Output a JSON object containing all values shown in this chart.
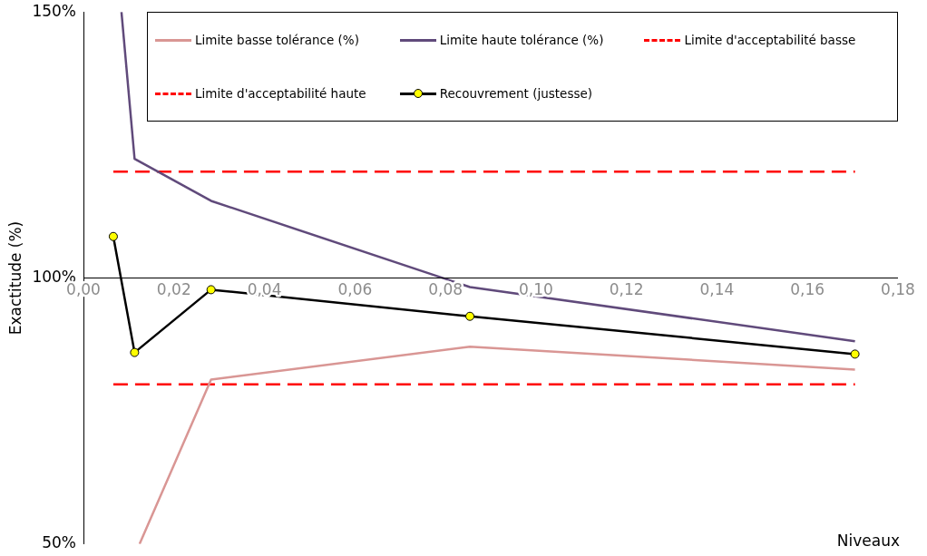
{
  "chart_data": {
    "type": "line",
    "xlabel": "Niveaux",
    "ylabel": "Exactitude (%)",
    "xlim": [
      0,
      0.18
    ],
    "ylim": [
      50,
      150
    ],
    "xticks": [
      {
        "value": 0,
        "label": "0,00"
      },
      {
        "value": 0.02,
        "label": "0,02"
      },
      {
        "value": 0.04,
        "label": "0,04"
      },
      {
        "value": 0.06,
        "label": "0,06"
      },
      {
        "value": 0.08,
        "label": "0,08"
      },
      {
        "value": 0.1,
        "label": "0,10"
      },
      {
        "value": 0.12,
        "label": "0,12"
      },
      {
        "value": 0.14,
        "label": "0,14"
      },
      {
        "value": 0.16,
        "label": "0,16"
      },
      {
        "value": 0.18,
        "label": "0,18"
      }
    ],
    "yticks": [
      {
        "value": 50,
        "label": "50%"
      },
      {
        "value": 100,
        "label": "100%"
      },
      {
        "value": 150,
        "label": "150%"
      }
    ],
    "ref_lines": [
      {
        "axis": "y",
        "value": 100,
        "color": "#000000"
      }
    ],
    "grid": false,
    "legend": "top right",
    "marker": "none",
    "line_style": "solid",
    "series": [
      {
        "name": "Limite basse tolérance (%)",
        "color": "#d99694",
        "x": [
          0.0124,
          0.0282,
          0.0854,
          0.1705
        ],
        "values": [
          50,
          80.9,
          87.1,
          82.8
        ]
      },
      {
        "name": "Limite haute tolérance (%)",
        "color": "#604a7b",
        "x": [
          0.0084,
          0.0113,
          0.0282,
          0.0854,
          0.1705
        ],
        "values": [
          150,
          122.4,
          114.5,
          98.3,
          88.1
        ]
      },
      {
        "name": "Limite d'acceptabilité basse",
        "color": "#ff0000",
        "line_style": "dashed",
        "x": [
          0.0066,
          0.1705
        ],
        "values": [
          80,
          80
        ]
      },
      {
        "name": "Limite d'acceptabilité haute",
        "color": "#ff0000",
        "line_style": "dashed",
        "x": [
          0.0066,
          0.1705
        ],
        "values": [
          120,
          120
        ]
      },
      {
        "name": "Recouvrement (justesse)",
        "color": "#000000",
        "marker": "circle",
        "colors": [
          "#ffff00",
          "#ffff00",
          "#ffff00",
          "#ffff00",
          "#ffff00"
        ],
        "x": [
          0.0066,
          0.0113,
          0.0282,
          0.0854,
          0.1705
        ],
        "values": [
          107.8,
          86,
          97.8,
          92.8,
          85.7
        ]
      }
    ]
  }
}
